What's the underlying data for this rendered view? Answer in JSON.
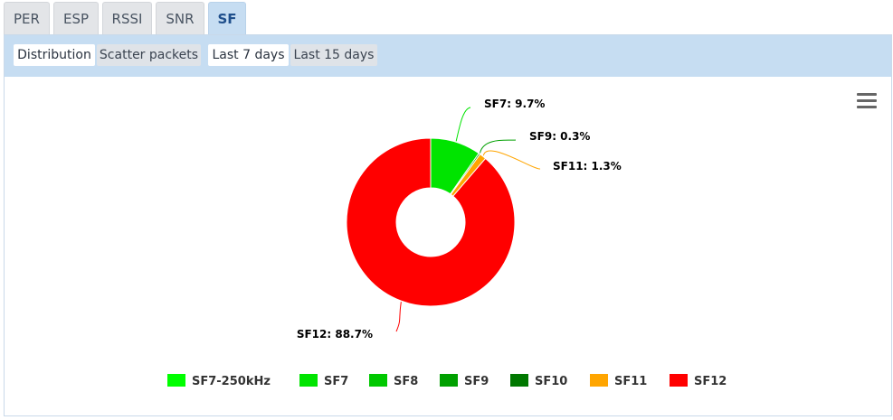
{
  "tabs": [
    {
      "label": "PER",
      "active": false
    },
    {
      "label": "ESP",
      "active": false
    },
    {
      "label": "RSSI",
      "active": false
    },
    {
      "label": "SNR",
      "active": false
    },
    {
      "label": "SF",
      "active": true
    }
  ],
  "subtabs": {
    "view": [
      {
        "label": "Distribution",
        "active": true
      },
      {
        "label": "Scatter packets",
        "active": false
      }
    ],
    "range": [
      {
        "label": "Last 7 days",
        "active": true
      },
      {
        "label": "Last 15 days",
        "active": false
      }
    ]
  },
  "chart_data": {
    "type": "pie",
    "donut": true,
    "title": "",
    "legend_position": "bottom",
    "series": [
      {
        "name": "SF7-250kHz",
        "value": 0,
        "color": "#00ff00",
        "label": ""
      },
      {
        "name": "SF7",
        "value": 9.7,
        "color": "#00e400",
        "label": "SF7: 9.7%"
      },
      {
        "name": "SF8",
        "value": 0,
        "color": "#00c800",
        "label": ""
      },
      {
        "name": "SF9",
        "value": 0.3,
        "color": "#00a000",
        "label": "SF9: 0.3%"
      },
      {
        "name": "SF10",
        "value": 0,
        "color": "#007800",
        "label": ""
      },
      {
        "name": "SF11",
        "value": 1.3,
        "color": "#ffa500",
        "label": "SF11: 1.3%"
      },
      {
        "name": "SF12",
        "value": 88.7,
        "color": "#ff0000",
        "label": "SF12: 88.7%"
      }
    ]
  }
}
